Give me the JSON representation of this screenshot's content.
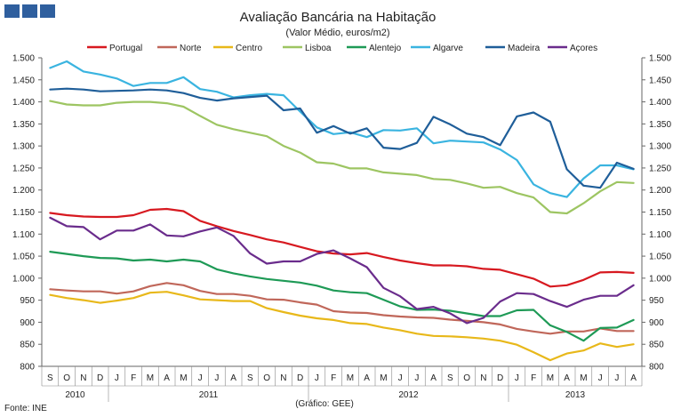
{
  "chart_data": {
    "type": "line",
    "title": "Avaliação Bancária na Habitação",
    "subtitle": "(Valor Médio, euros/m2)",
    "source_left": "Fonte: INE",
    "source_center": "(Gráfico: GEE)",
    "ylim": [
      800,
      1500
    ],
    "yticks": [
      "800",
      "850",
      "900",
      "950",
      "1.000",
      "1.050",
      "1.100",
      "1.150",
      "1.200",
      "1.250",
      "1.300",
      "1.350",
      "1.400",
      "1.450",
      "1.500"
    ],
    "ytick_values": [
      800,
      850,
      900,
      950,
      1000,
      1050,
      1100,
      1150,
      1200,
      1250,
      1300,
      1350,
      1400,
      1450,
      1500
    ],
    "months": [
      "S",
      "O",
      "N",
      "D",
      "J",
      "F",
      "M",
      "A",
      "M",
      "J",
      "J",
      "A",
      "S",
      "O",
      "N",
      "D",
      "J",
      "F",
      "M",
      "A",
      "M",
      "J",
      "J",
      "A",
      "S",
      "O",
      "N",
      "D",
      "J",
      "F",
      "M",
      "A",
      "M",
      "J",
      "J",
      "A"
    ],
    "year_labels": [
      {
        "label": "2010",
        "from": 0,
        "to": 3
      },
      {
        "label": "2011",
        "from": 4,
        "to": 15
      },
      {
        "label": "2012",
        "from": 16,
        "to": 27
      },
      {
        "label": "2013",
        "from": 28,
        "to": 35
      }
    ],
    "series": [
      {
        "name": "Portugal",
        "color": "#d71920",
        "values": [
          1148,
          1143,
          1140,
          1139,
          1139,
          1143,
          1155,
          1157,
          1152,
          1130,
          1118,
          1107,
          1098,
          1088,
          1081,
          1071,
          1061,
          1056,
          1054,
          1057,
          1048,
          1040,
          1034,
          1029,
          1029,
          1027,
          1021,
          1019,
          1009,
          999,
          981,
          984,
          996,
          1013,
          1014,
          1012
        ]
      },
      {
        "name": "Norte",
        "color": "#c0675a",
        "values": [
          975,
          972,
          970,
          970,
          965,
          970,
          982,
          989,
          984,
          971,
          964,
          964,
          960,
          952,
          951,
          945,
          940,
          925,
          922,
          921,
          916,
          913,
          911,
          910,
          906,
          903,
          900,
          895,
          885,
          879,
          874,
          879,
          879,
          886,
          880,
          880
        ]
      },
      {
        "name": "Centro",
        "color": "#e8b81a",
        "values": [
          962,
          955,
          950,
          944,
          949,
          955,
          967,
          969,
          961,
          952,
          950,
          948,
          948,
          932,
          923,
          915,
          909,
          905,
          898,
          896,
          888,
          882,
          874,
          869,
          868,
          866,
          863,
          858,
          849,
          832,
          814,
          829,
          836,
          852,
          844,
          850
        ]
      },
      {
        "name": "Lisboa",
        "color": "#9dc562",
        "values": [
          1402,
          1394,
          1392,
          1392,
          1398,
          1400,
          1400,
          1397,
          1389,
          1368,
          1348,
          1338,
          1330,
          1322,
          1300,
          1285,
          1263,
          1260,
          1249,
          1249,
          1240,
          1237,
          1234,
          1225,
          1223,
          1215,
          1205,
          1207,
          1193,
          1183,
          1150,
          1147,
          1170,
          1197,
          1218,
          1216
        ]
      },
      {
        "name": "Alentejo",
        "color": "#1e9a56",
        "values": [
          1060,
          1055,
          1050,
          1046,
          1045,
          1040,
          1042,
          1038,
          1042,
          1038,
          1020,
          1011,
          1004,
          998,
          994,
          990,
          983,
          972,
          968,
          966,
          951,
          936,
          928,
          929,
          926,
          920,
          914,
          914,
          927,
          928,
          893,
          878,
          858,
          887,
          888,
          905
        ]
      },
      {
        "name": "Algarve",
        "color": "#3ab4e0",
        "values": [
          1477,
          1492,
          1469,
          1462,
          1453,
          1436,
          1443,
          1443,
          1456,
          1429,
          1423,
          1410,
          1415,
          1418,
          1415,
          1378,
          1342,
          1327,
          1331,
          1320,
          1336,
          1335,
          1340,
          1306,
          1312,
          1310,
          1308,
          1292,
          1268,
          1213,
          1193,
          1184,
          1226,
          1256,
          1256,
          1247
        ]
      },
      {
        "name": "Madeira",
        "color": "#1f5e99",
        "values": [
          1428,
          1430,
          1428,
          1424,
          1425,
          1426,
          1428,
          1426,
          1420,
          1409,
          1403,
          1408,
          1411,
          1414,
          1381,
          1385,
          1330,
          1345,
          1328,
          1340,
          1296,
          1293,
          1307,
          1366,
          1349,
          1328,
          1320,
          1302,
          1367,
          1376,
          1355,
          1247,
          1210,
          1205,
          1262,
          1248
        ]
      },
      {
        "name": "Açores",
        "color": "#6a2c8c",
        "values": [
          1137,
          1118,
          1116,
          1088,
          1108,
          1108,
          1122,
          1097,
          1095,
          1106,
          1115,
          1096,
          1056,
          1033,
          1038,
          1038,
          1055,
          1063,
          1045,
          1025,
          978,
          959,
          930,
          935,
          920,
          898,
          910,
          947,
          966,
          964,
          948,
          935,
          951,
          960,
          960,
          984
        ]
      }
    ]
  }
}
